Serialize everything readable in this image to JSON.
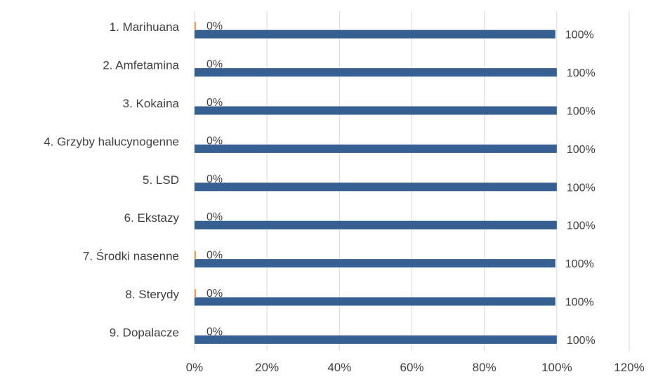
{
  "chart_data": {
    "type": "bar",
    "orientation": "horizontal",
    "categories": [
      "1. Marihuana",
      "2. Amfetamina",
      "3. Kokaina",
      "4. Grzyby halucynogenne",
      "5. LSD",
      "6. Ekstazy",
      "7. Środki nasenne",
      "8. Sterydy",
      "9. Dopalacze"
    ],
    "series": [
      {
        "color": "#376092",
        "values": [
          0.996,
          1.0,
          1.0,
          1.0,
          1.0,
          1.0,
          0.996,
          0.996,
          1.0
        ],
        "data_labels": [
          "100%",
          "100%",
          "100%",
          "100%",
          "100%",
          "100%",
          "100%",
          "100%",
          "100%"
        ]
      },
      {
        "color": "#f79646",
        "values": [
          0.004,
          0.0,
          0.0,
          0.0,
          0.0,
          0.0,
          0.004,
          0.004,
          0.0
        ],
        "data_labels": [
          "0%",
          "0%",
          "0%",
          "0%",
          "0%",
          "0%",
          "0%",
          "0%",
          "0%"
        ]
      }
    ],
    "x_ticks": [
      "0%",
      "20%",
      "40%",
      "60%",
      "80%",
      "100%",
      "120%"
    ],
    "xlim": [
      0,
      1.2
    ],
    "grid": true,
    "legend": "none"
  }
}
